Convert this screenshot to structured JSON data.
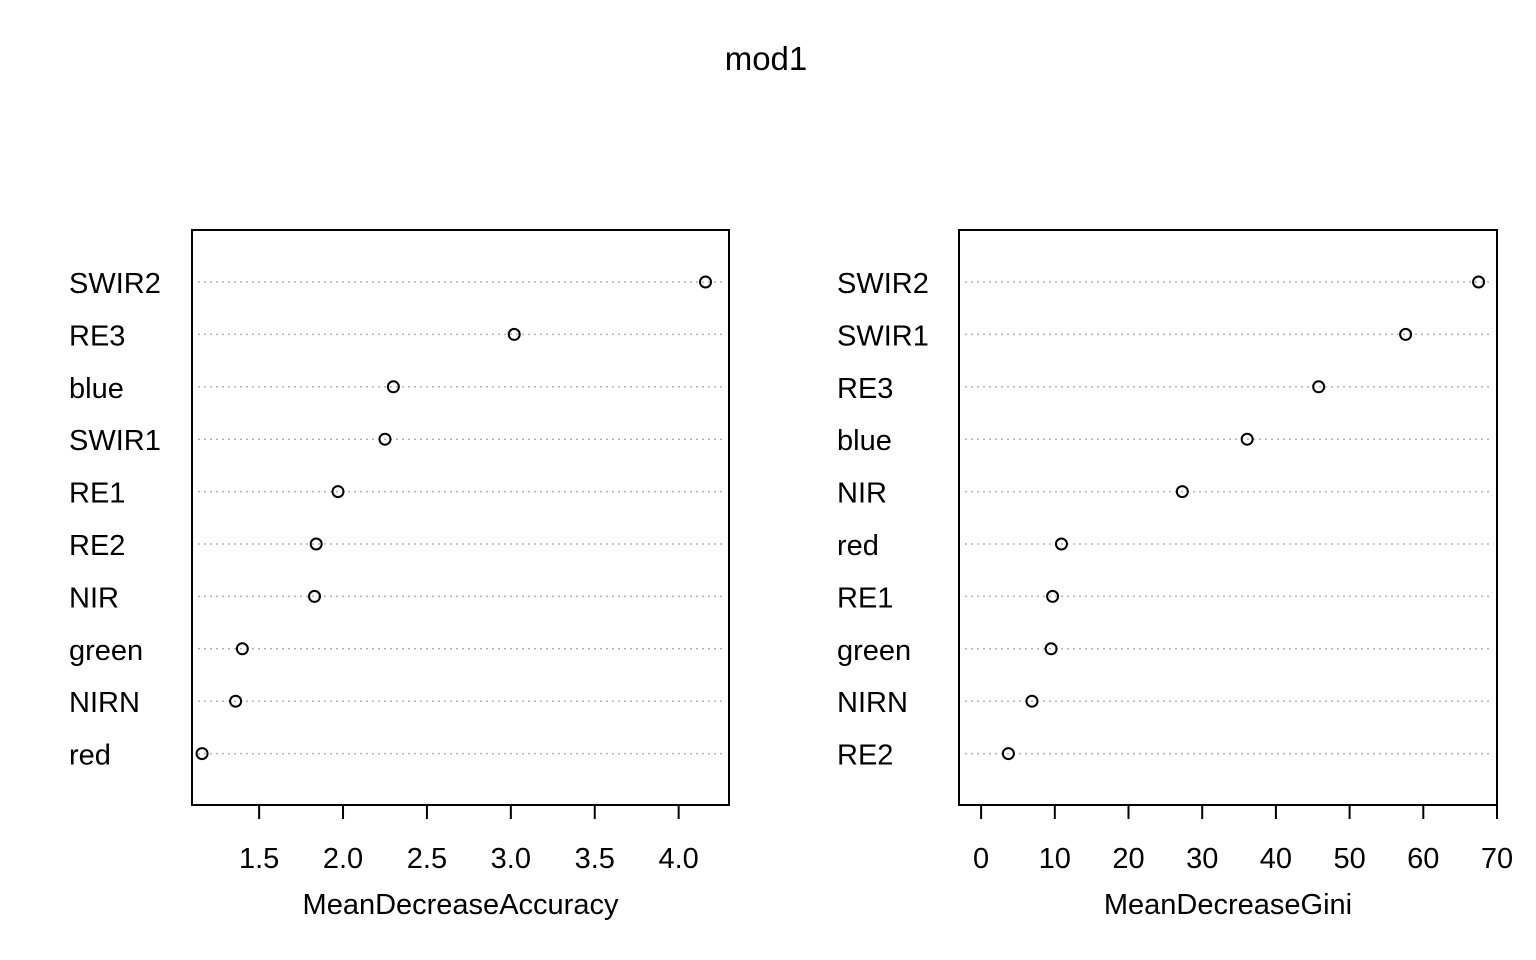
{
  "title": "mod1",
  "chart_data": [
    {
      "type": "scatter",
      "subtype": "dotchart",
      "xlabel": "MeanDecreaseAccuracy",
      "xlim": [
        1.1,
        4.3
      ],
      "xticks": [
        1.5,
        2.0,
        2.5,
        3.0,
        3.5,
        4.0
      ],
      "xtick_labels": [
        "1.5",
        "2.0",
        "2.5",
        "3.0",
        "3.5",
        "4.0"
      ],
      "grid": "dotted horizontal",
      "categories": [
        "SWIR2",
        "RE3",
        "blue",
        "SWIR1",
        "RE1",
        "RE2",
        "NIR",
        "green",
        "NIRN",
        "red"
      ],
      "values": [
        4.16,
        3.02,
        2.3,
        2.25,
        1.97,
        1.84,
        1.83,
        1.4,
        1.36,
        1.16
      ]
    },
    {
      "type": "scatter",
      "subtype": "dotchart",
      "xlabel": "MeanDecreaseGini",
      "xlim": [
        -3,
        70
      ],
      "xticks": [
        0,
        10,
        20,
        30,
        40,
        50,
        60,
        70
      ],
      "xtick_labels": [
        "0",
        "10",
        "20",
        "30",
        "40",
        "50",
        "60",
        "70"
      ],
      "grid": "dotted horizontal",
      "categories": [
        "SWIR2",
        "SWIR1",
        "RE3",
        "blue",
        "NIR",
        "red",
        "RE1",
        "green",
        "NIRN",
        "RE2"
      ],
      "values": [
        67.5,
        57.6,
        45.8,
        36.1,
        27.3,
        10.9,
        9.7,
        9.5,
        6.9,
        3.7
      ]
    }
  ]
}
